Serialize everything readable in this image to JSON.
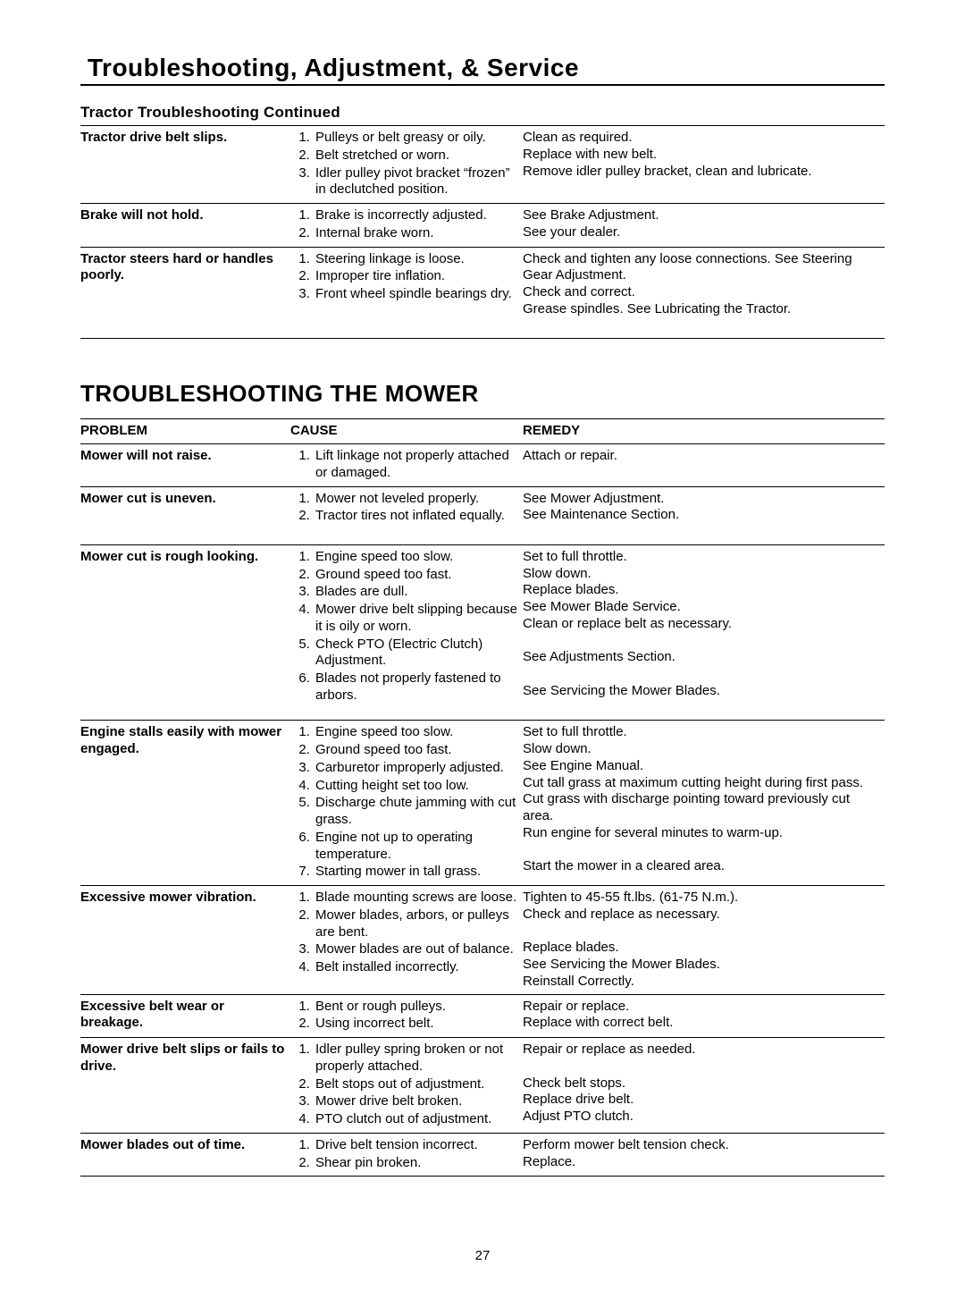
{
  "header_title": "Troubleshooting, Adjustment, & Service",
  "tractor_sub": "Tractor Troubleshooting Continued",
  "mower_title": "TROUBLESHOOTING THE MOWER",
  "columns": {
    "problem": "PROBLEM",
    "cause": "CAUSE",
    "remedy": "REMEDY"
  },
  "page_number": "27",
  "tractor_rows": [
    {
      "problem": "Tractor drive belt slips.",
      "causes": [
        "Pulleys or belt greasy or oily.",
        "Belt stretched or worn.",
        "Idler pulley pivot bracket “frozen” in declutched position."
      ],
      "remedies": [
        "Clean as required.",
        "Replace with new belt.",
        "Remove idler pulley bracket, clean and lubricate."
      ]
    },
    {
      "problem": "Brake will not hold.",
      "causes": [
        "Brake is incorrectly adjusted.",
        "Internal brake worn."
      ],
      "remedies": [
        "See Brake Adjustment.",
        "See your dealer."
      ]
    },
    {
      "problem": "Tractor steers hard or handles poorly.",
      "causes": [
        "Steering linkage is loose.",
        "Improper tire inflation.",
        "Front wheel spindle bearings dry."
      ],
      "remedies": [
        "Check and tighten any loose connections. See Steering Gear Adjustment.",
        "Check and correct.",
        "Grease spindles. See Lubricating the Tractor."
      ]
    }
  ],
  "mower_rows": [
    {
      "problem": "Mower will not raise.",
      "causes": [
        "Lift linkage not properly attached or damaged."
      ],
      "remedies": [
        "Attach or repair."
      ]
    },
    {
      "problem": "Mower cut is uneven.",
      "causes": [
        "Mower not leveled properly.",
        "Tractor tires not inflated equally."
      ],
      "remedies": [
        "See Mower Adjustment.",
        "See Maintenance Section."
      ]
    },
    {
      "problem": "Mower cut is rough looking.",
      "causes": [
        "Engine speed too slow.",
        "Ground speed too fast.",
        "Blades are dull.",
        "Mower drive belt slipping because it is oily or worn.",
        "Check PTO (Electric Clutch) Adjustment.",
        "Blades not properly fastened to arbors."
      ],
      "remedies": [
        "Set to full throttle.",
        "Slow down.",
        "Replace blades.\nSee Mower Blade Service.",
        "Clean or replace belt as necessary.",
        "See Adjustments Section.",
        "See Servicing the Mower Blades."
      ]
    },
    {
      "problem": "Engine stalls easily with mower engaged.",
      "causes": [
        "Engine speed too slow.",
        "Ground speed too fast.",
        "Carburetor improperly adjusted.",
        "Cutting height set too low.",
        "Discharge chute jamming with cut grass.",
        "Engine not up to operating temperature.",
        "Starting mower in tall grass."
      ],
      "remedies": [
        "Set to full throttle.",
        "Slow down.",
        "See Engine Manual.",
        "Cut tall grass at maximum cutting height during first pass.",
        "Cut grass with discharge pointing toward previously cut area.",
        "Run engine for several minutes to warm-up.",
        "Start the mower in a cleared area."
      ]
    },
    {
      "problem": "Excessive mower vibration.",
      "causes": [
        "Blade mounting screws are loose.",
        "Mower blades, arbors, or pulleys are bent.",
        "Mower blades are out of balance.",
        "Belt installed incorrectly."
      ],
      "remedies": [
        "Tighten to 45-55 ft.lbs. (61-75 N.m.).",
        "Check and replace as necessary.",
        "Replace blades.\nSee Servicing the Mower Blades.",
        "Reinstall Correctly."
      ]
    },
    {
      "problem": "Excessive belt wear or breakage.",
      "causes": [
        "Bent or rough pulleys.",
        "Using incorrect belt."
      ],
      "remedies": [
        "Repair or replace.",
        "Replace with correct belt."
      ]
    },
    {
      "problem": "Mower drive belt slips or fails to drive.",
      "causes": [
        "Idler pulley spring broken or not properly attached.",
        "Belt stops out of adjustment.",
        "Mower drive belt broken.",
        "PTO clutch out of adjustment."
      ],
      "remedies": [
        "Repair or replace as needed.",
        "Check belt stops.",
        "Replace drive belt.",
        "Adjust PTO clutch."
      ]
    },
    {
      "problem": "Mower blades out of time.",
      "causes": [
        "Drive belt tension incorrect.",
        "Shear pin broken."
      ],
      "remedies": [
        "Perform mower belt tension check.",
        "Replace."
      ]
    }
  ]
}
